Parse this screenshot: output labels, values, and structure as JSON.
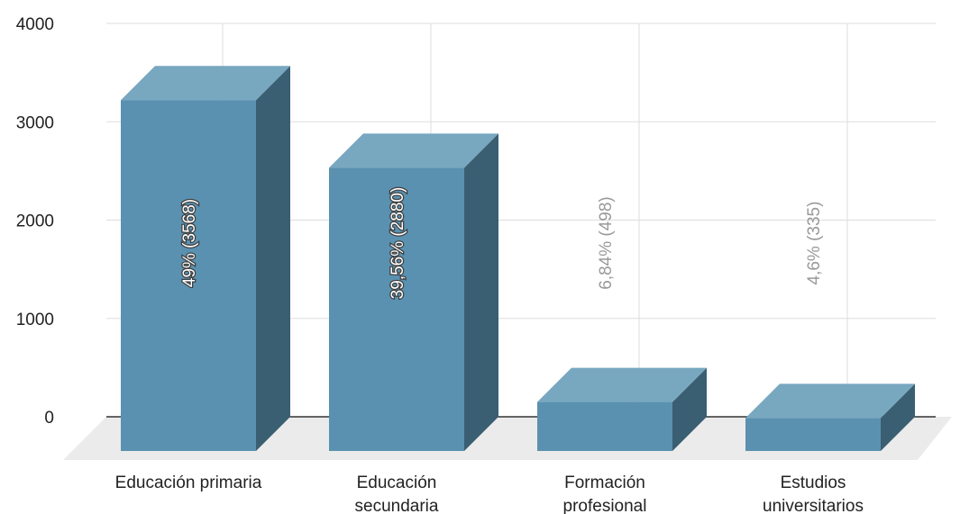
{
  "chart_data": {
    "type": "bar",
    "categories": [
      [
        "Educación primaria"
      ],
      [
        "Educación",
        "secundaria"
      ],
      [
        "Formación",
        "profesional"
      ],
      [
        "Estudios",
        "universitarios"
      ]
    ],
    "values": [
      3568,
      2880,
      498,
      335
    ],
    "data_labels": [
      "49% (3568)",
      "39,56% (2880)",
      "6,84% (498)",
      "4,6% (335)"
    ],
    "y_ticks": [
      "0",
      "1000",
      "2000",
      "3000",
      "4000"
    ],
    "ylim": [
      0,
      4000
    ],
    "grid": true,
    "style": "3d-bar",
    "colors": {
      "bar_front": "#5a91b0",
      "bar_top": "#78a7c0",
      "bar_side": "#3a5e72",
      "floor": "#ebebeb",
      "grid": "#dddddd",
      "axis": "#333333",
      "label_outside": "#999999",
      "label_inside": "#ffffff"
    }
  }
}
